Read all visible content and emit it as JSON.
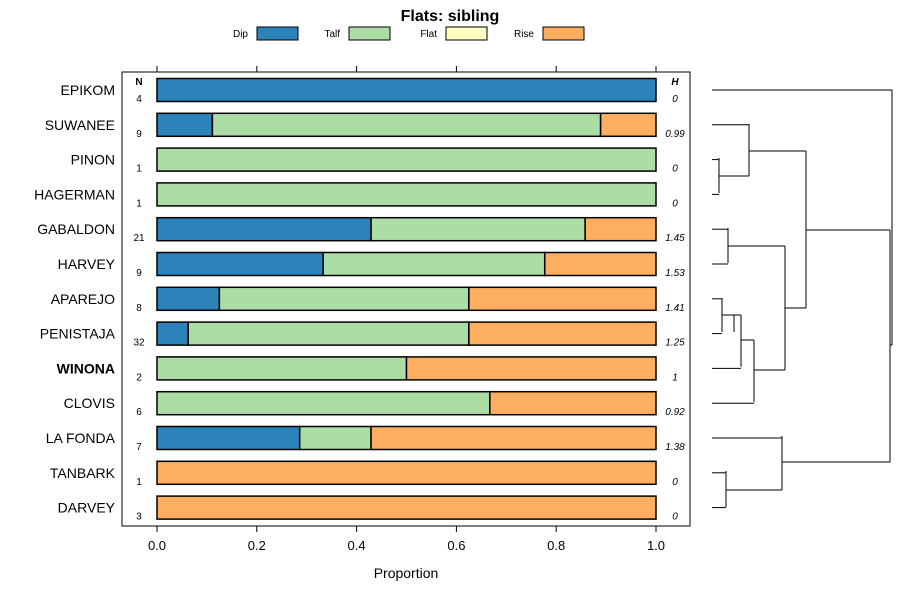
{
  "chart_data": {
    "type": "bar",
    "stacked": true,
    "orientation": "horizontal",
    "title": "Flats: sibling",
    "xlabel": "Proportion",
    "xlim": [
      0,
      1
    ],
    "xticks": [
      "0.0",
      "0.2",
      "0.4",
      "0.6",
      "0.8",
      "1.0"
    ],
    "n_header": "N",
    "h_header": "H",
    "legend": [
      {
        "name": "Dip",
        "color": "#2b83ba"
      },
      {
        "name": "Talf",
        "color": "#abdda4"
      },
      {
        "name": "Flat",
        "color": "#ffffbf"
      },
      {
        "name": "Rise",
        "color": "#fdae61"
      }
    ],
    "categories": [
      "EPIKOM",
      "SUWANEE",
      "PINON",
      "HAGERMAN",
      "GABALDON",
      "HARVEY",
      "APAREJO",
      "PENISTAJA",
      "WINONA",
      "CLOVIS",
      "LA FONDA",
      "TANBARK",
      "DARVEY"
    ],
    "highlight": "WINONA",
    "n": [
      "4",
      "9",
      "1",
      "1",
      "21",
      "9",
      "8",
      "32",
      "2",
      "6",
      "7",
      "1",
      "3"
    ],
    "h": [
      "0",
      "0.99",
      "0",
      "0",
      "1.45",
      "1.53",
      "1.41",
      "1.25",
      "1",
      "0.92",
      "1.38",
      "0",
      "0"
    ],
    "series": [
      {
        "name": "Dip",
        "values": [
          1.0,
          0.111,
          0,
          0,
          0.429,
          0.333,
          0.125,
          0.0625,
          0,
          0,
          0.286,
          0,
          0
        ]
      },
      {
        "name": "Talf",
        "values": [
          0,
          0.778,
          1.0,
          1.0,
          0.429,
          0.444,
          0.5,
          0.5625,
          0.5,
          0.667,
          0.143,
          0,
          0
        ]
      },
      {
        "name": "Flat",
        "values": [
          0,
          0,
          0,
          0,
          0,
          0,
          0,
          0,
          0,
          0,
          0,
          0,
          0
        ]
      },
      {
        "name": "Rise",
        "values": [
          0,
          0.111,
          0,
          0,
          0.142,
          0.223,
          0.375,
          0.375,
          0.5,
          0.333,
          0.571,
          1.0,
          1.0
        ]
      }
    ],
    "dendrogram": "hierarchical clustering of rows"
  }
}
